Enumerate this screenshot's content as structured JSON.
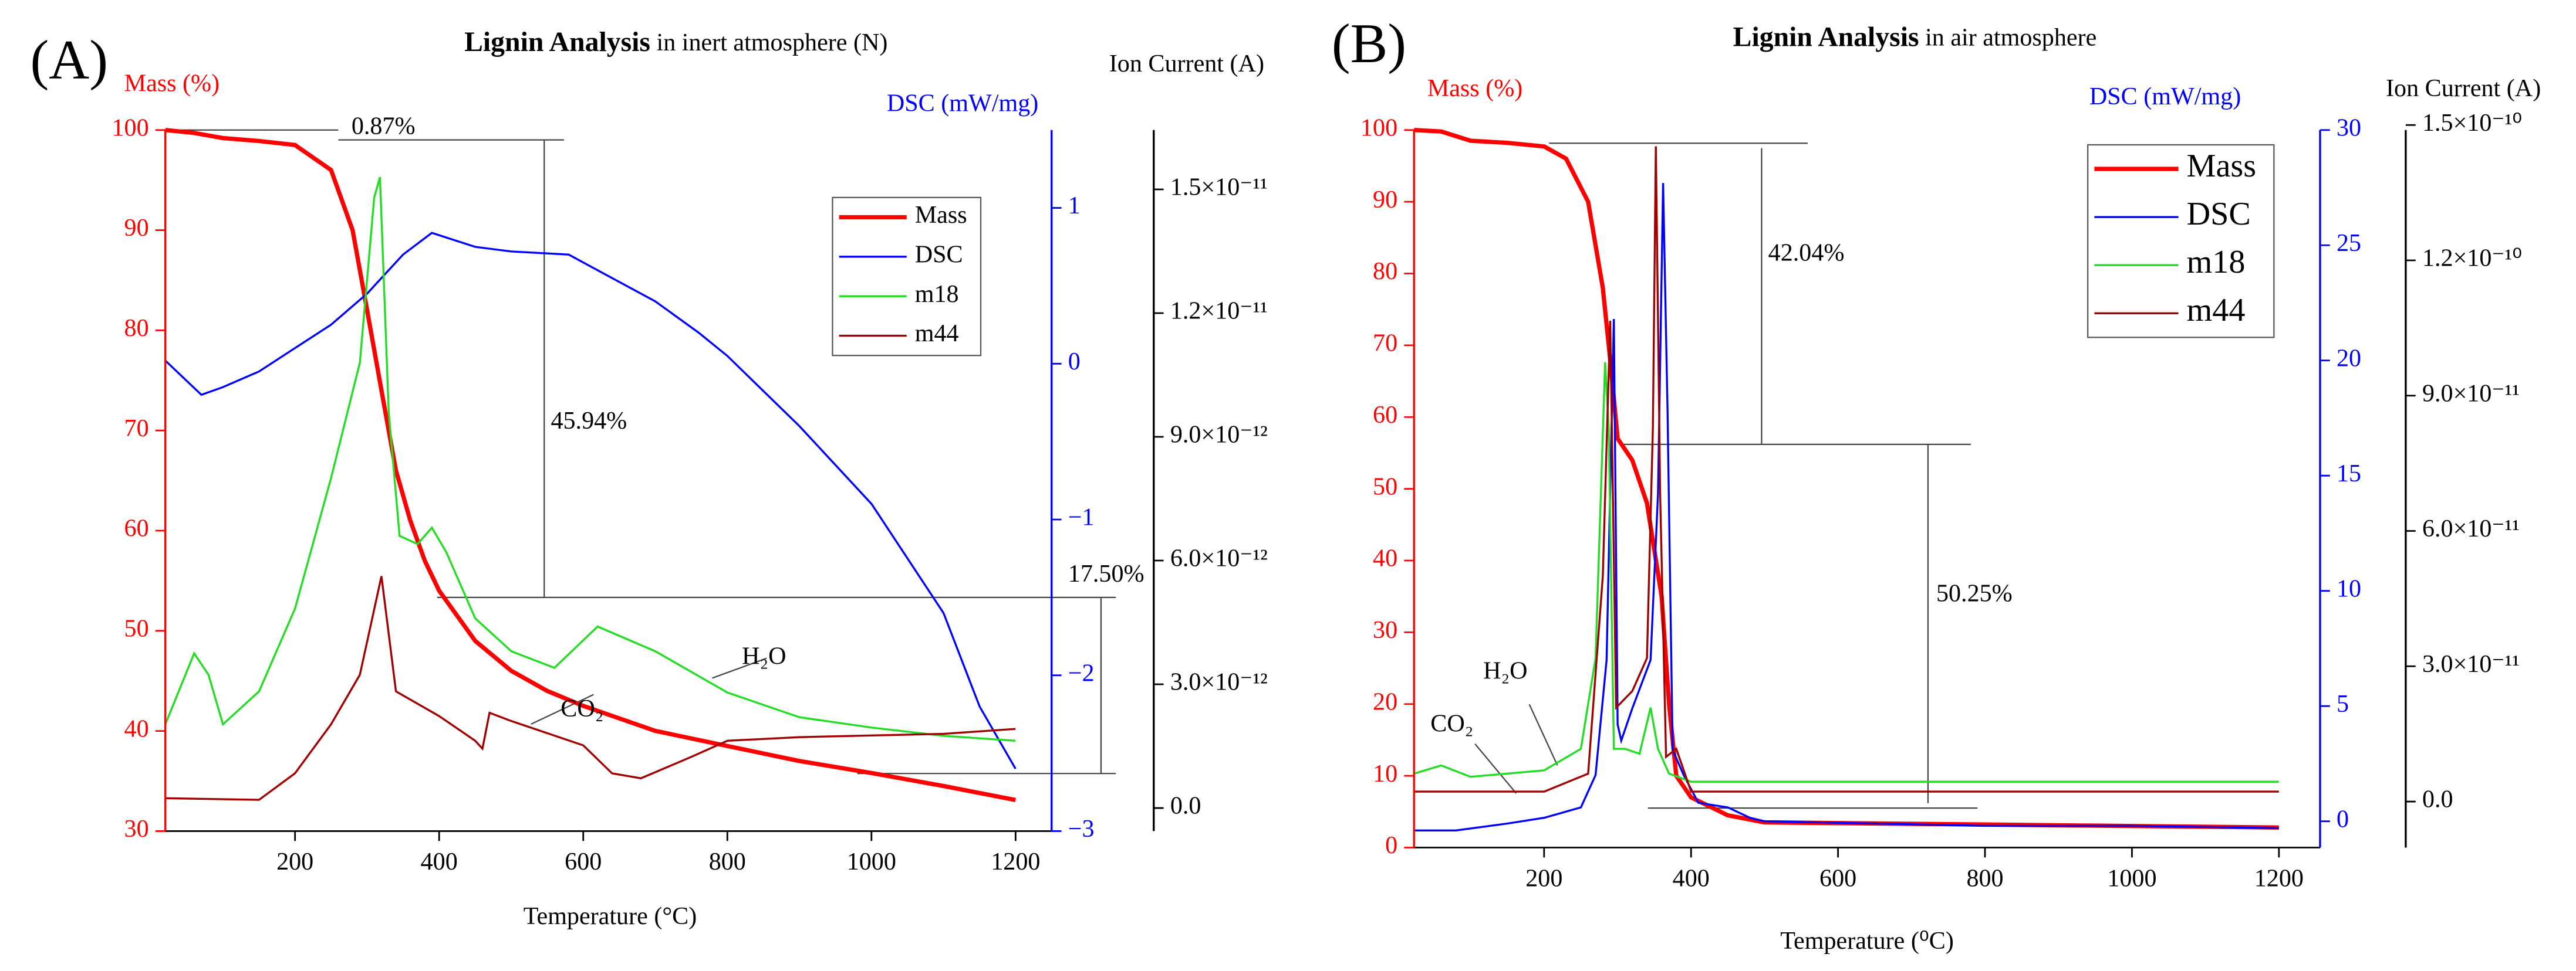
{
  "chart_data": [
    {
      "type": "line",
      "panel": "(A)",
      "title": "Lignin Analysis",
      "subtitle": "in inert atmosphere (N)",
      "x_label": "Temperature (°C)",
      "y_label": "Mass (%)",
      "y2_label": "DSC (mW/mg)",
      "y3_label": "Ion Current (A)",
      "xlim": [
        20,
        1250
      ],
      "xticks": [
        200,
        400,
        600,
        800,
        1000,
        1200
      ],
      "ylim": [
        30,
        100
      ],
      "yticks": [
        30,
        40,
        50,
        60,
        70,
        80,
        90,
        100
      ],
      "y2lim": [
        -3,
        1.5
      ],
      "y2ticks": [
        {
          "value": -3,
          "label": "−3"
        },
        {
          "value": -2,
          "label": "−2"
        },
        {
          "value": -1,
          "label": "−1"
        },
        0,
        1
      ],
      "y3lim": [
        -5.6e-13,
        1.644e-11
      ],
      "y3ticks": [
        {
          "value": 0,
          "label": "0.0"
        },
        {
          "value": 3e-12,
          "label": "3.0×10⁻¹²"
        },
        {
          "value": 6e-12,
          "label": "6.0×10⁻¹²"
        },
        {
          "value": 9e-12,
          "label": "9.0×10⁻¹²"
        },
        {
          "value": 1.2e-11,
          "label": "1.2×10⁻¹¹"
        },
        {
          "value": 1.5e-11,
          "label": "1.5×10⁻¹¹"
        }
      ],
      "annotations": [
        "0.87%",
        "45.94%",
        "17.50%",
        "H₂O",
        "CO₂"
      ],
      "series": [
        {
          "name": "Mass",
          "color": "#ff0000",
          "x": [
            20,
            60,
            100,
            150,
            200,
            250,
            280,
            300,
            320,
            340,
            360,
            380,
            400,
            450,
            500,
            550,
            600,
            700,
            800,
            900,
            1000,
            1100,
            1200
          ],
          "values": [
            100,
            99.7,
            99.2,
            98.9,
            98.5,
            96,
            90,
            82,
            74,
            66,
            61,
            57,
            54,
            49,
            46,
            44,
            42.5,
            40,
            38.5,
            37,
            35.8,
            34.5,
            33.1
          ]
        },
        {
          "name": "DSC",
          "color": "#0000ff",
          "axis": "y2",
          "x": [
            20,
            70,
            100,
            150,
            200,
            250,
            300,
            350,
            390,
            450,
            500,
            580,
            620,
            700,
            760,
            800,
            900,
            1000,
            1100,
            1150,
            1200
          ],
          "values": [
            0.02,
            -0.2,
            -0.15,
            -0.05,
            0.1,
            0.25,
            0.45,
            0.7,
            0.84,
            0.75,
            0.72,
            0.7,
            0.6,
            0.4,
            0.2,
            0.05,
            -0.4,
            -0.9,
            -1.6,
            -2.2,
            -2.6
          ]
        },
        {
          "name": "m18",
          "color": "#22dd22",
          "axis": "y3",
          "x": [
            20,
            60,
            80,
            100,
            150,
            200,
            250,
            290,
            310,
            318,
            330,
            345,
            370,
            390,
            410,
            450,
            500,
            560,
            620,
            700,
            800,
            900,
            1000,
            1100,
            1200
          ],
          "values": [
            2.03e-12,
            3.75e-12,
            3.23e-12,
            2.03e-12,
            2.83e-12,
            4.83e-12,
            8e-12,
            1.08e-11,
            1.48e-11,
            1.53e-11,
            9.6e-12,
            6.6e-12,
            6.4e-12,
            6.8e-12,
            6.2e-12,
            4.6e-12,
            3.8e-12,
            3.4e-12,
            4.4e-12,
            3.8e-12,
            2.8e-12,
            2.2e-12,
            1.95e-12,
            1.75e-12,
            1.63e-12
          ]
        },
        {
          "name": "m44",
          "color": "#a00000",
          "axis": "y3",
          "x": [
            20,
            150,
            200,
            250,
            290,
            320,
            340,
            400,
            450,
            460,
            470,
            500,
            600,
            640,
            680,
            750,
            800,
            900,
            1000,
            1100,
            1200
          ],
          "values": [
            2.4e-13,
            2e-13,
            8.4e-13,
            2.03e-12,
            3.23e-12,
            5.62e-12,
            2.83e-12,
            2.23e-12,
            1.63e-12,
            1.44e-12,
            2.31e-12,
            2.11e-12,
            1.52e-12,
            8.4e-13,
            7.2e-13,
            1.24e-12,
            1.63e-12,
            1.72e-12,
            1.76e-12,
            1.8e-12,
            1.92e-12
          ]
        }
      ]
    },
    {
      "type": "line",
      "panel": "(B)",
      "title": "Lignin Analysis",
      "subtitle": "in air atmosphere",
      "x_label": "Temperature (⁰C)",
      "y_label": "Mass (%)",
      "y2_label": "DSC (mW/mg)",
      "y3_label": "Ion Current (A)",
      "xlim": [
        23,
        1256
      ],
      "xticks": [
        200,
        400,
        600,
        800,
        1000,
        1200
      ],
      "ylim": [
        0,
        100
      ],
      "yticks": [
        0,
        10,
        20,
        30,
        40,
        50,
        60,
        70,
        80,
        90,
        100
      ],
      "y2lim": [
        -1.14,
        30
      ],
      "y2ticks": [
        0,
        5,
        10,
        15,
        20,
        25,
        30
      ],
      "y3lim": [
        -1.02e-11,
        1.489e-10
      ],
      "y3ticks": [
        {
          "value": 0,
          "label": "0.0"
        },
        {
          "value": 3e-11,
          "label": "3.0×10⁻¹¹"
        },
        {
          "value": 6e-11,
          "label": "6.0×10⁻¹¹"
        },
        {
          "value": 9e-11,
          "label": "9.0×10⁻¹¹"
        },
        {
          "value": 1.2e-10,
          "label": "1.2×10⁻¹⁰"
        },
        {
          "value": 1.5e-10,
          "label": "1.5×10⁻¹⁰"
        }
      ],
      "annotations": [
        "42.04%",
        "50.25%",
        "H₂O",
        "CO₂"
      ],
      "series": [
        {
          "name": "Mass",
          "color": "#ff0000",
          "x": [
            23,
            60,
            100,
            150,
            200,
            230,
            260,
            280,
            290,
            300,
            320,
            340,
            360,
            370,
            380,
            400,
            450,
            500,
            800,
            1200
          ],
          "values": [
            100,
            99.8,
            98.5,
            98.2,
            97.7,
            96,
            90,
            78,
            68,
            57,
            54,
            48,
            35,
            20,
            10,
            7,
            4.5,
            3.5,
            3.2,
            2.8
          ]
        },
        {
          "name": "DSC",
          "color": "#0000ff",
          "axis": "y2",
          "x": [
            23,
            80,
            150,
            200,
            250,
            270,
            285,
            295,
            300,
            305,
            320,
            345,
            355,
            362,
            368,
            375,
            390,
            410,
            450,
            480,
            500,
            800,
            1000,
            1200
          ],
          "values": [
            -0.4,
            -0.4,
            -0.1,
            0.15,
            0.6,
            2,
            7,
            21.8,
            4.2,
            3.5,
            4.9,
            7,
            14.2,
            27.7,
            17.8,
            3.1,
            2,
            0.8,
            0.6,
            0.15,
            0,
            -0.2,
            -0.2,
            -0.3
          ]
        },
        {
          "name": "m18",
          "color": "#22dd22",
          "axis": "y3",
          "x": [
            23,
            60,
            100,
            200,
            250,
            270,
            283,
            288,
            295,
            310,
            330,
            345,
            355,
            370,
            400,
            1200
          ],
          "values": [
            6.2e-12,
            8e-12,
            5.5e-12,
            6.9e-12,
            1.17e-11,
            3.18e-11,
            9.74e-11,
            8.29e-11,
            1.17e-11,
            1.17e-11,
            1.06e-11,
            2.08e-11,
            1.17e-11,
            6.2e-12,
            4.4e-12,
            4.4e-12
          ]
        },
        {
          "name": "m44",
          "color": "#a00000",
          "axis": "y3",
          "x": [
            23,
            200,
            260,
            280,
            290,
            298,
            320,
            340,
            348,
            352,
            358,
            366,
            380,
            400,
            1200
          ],
          "values": [
            2.2e-12,
            2.2e-12,
            6.2e-12,
            5e-11,
            1.066e-10,
            2.08e-11,
            2.45e-11,
            3.18e-11,
            8.29e-11,
            1.453e-10,
            6.83e-11,
            9.9e-12,
            1.17e-11,
            2.2e-12,
            2.2e-12
          ]
        }
      ]
    }
  ]
}
